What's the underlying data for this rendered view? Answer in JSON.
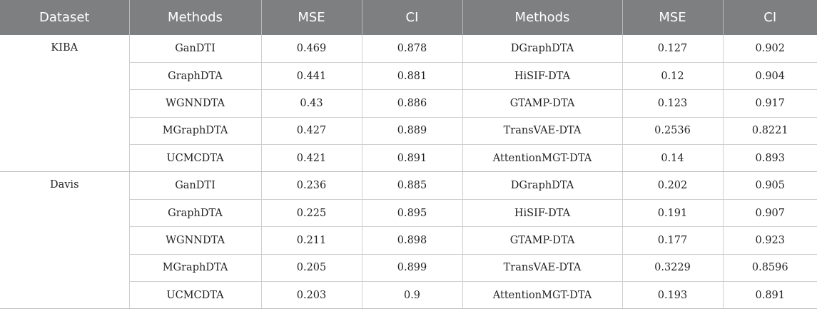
{
  "headers": [
    "Dataset",
    "Methods",
    "MSE",
    "CI",
    "Methods",
    "MSE",
    "CI"
  ],
  "groups": [
    {
      "dataset": "KIBA",
      "rows": [
        [
          "GanDTI",
          "0.469",
          "0.878",
          "DGraphDTA",
          "0.127",
          "0.902"
        ],
        [
          "GraphDTA",
          "0.441",
          "0.881",
          "HiSIF-DTA",
          "0.12",
          "0.904"
        ],
        [
          "WGNNDTA",
          "0.43",
          "0.886",
          "GTAMP-DTA",
          "0.123",
          "0.917"
        ],
        [
          "MGraphDTA",
          "0.427",
          "0.889",
          "TransVAE-DTA",
          "0.2536",
          "0.8221"
        ],
        [
          "UCMCDTA",
          "0.421",
          "0.891",
          "AttentionMGT-DTA",
          "0.14",
          "0.893"
        ]
      ]
    },
    {
      "dataset": "Davis",
      "rows": [
        [
          "GanDTI",
          "0.236",
          "0.885",
          "DGraphDTA",
          "0.202",
          "0.905"
        ],
        [
          "GraphDTA",
          "0.225",
          "0.895",
          "HiSIF-DTA",
          "0.191",
          "0.907"
        ],
        [
          "WGNNDTA",
          "0.211",
          "0.898",
          "GTAMP-DTA",
          "0.177",
          "0.923"
        ],
        [
          "MGraphDTA",
          "0.205",
          "0.899",
          "TransVAE-DTA",
          "0.3229",
          "0.8596"
        ],
        [
          "UCMCDTA",
          "0.203",
          "0.9",
          "AttentionMGT-DTA",
          "0.193",
          "0.891"
        ]
      ]
    }
  ]
}
